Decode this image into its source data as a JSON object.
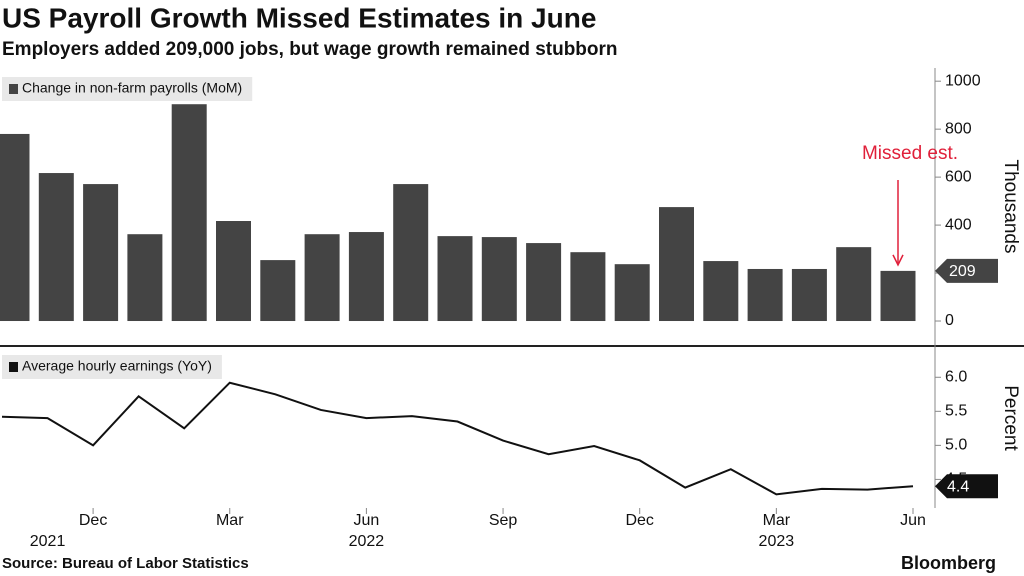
{
  "title": "US Payroll Growth Missed Estimates in June",
  "subtitle": "Employers added 209,000 jobs, but wage growth remained stubborn",
  "source": "Source: Bureau of Labor Statistics",
  "brand": "Bloomberg",
  "chart_data": [
    {
      "type": "bar",
      "categories": [
        null,
        null,
        "Dec",
        null,
        null,
        "Mar",
        null,
        null,
        "Jun",
        null,
        null,
        "Sep",
        null,
        null,
        "Dec",
        null,
        null,
        "Mar",
        null,
        null,
        "Jun"
      ],
      "series": [
        {
          "name": "Change in non-farm payrolls (MoM)",
          "color": "#444444",
          "values": [
            780,
            617,
            571,
            362,
            904,
            417,
            254,
            362,
            371,
            571,
            354,
            350,
            325,
            287,
            237,
            475,
            250,
            217,
            217,
            308,
            209
          ]
        }
      ],
      "ylabel": "Thousands",
      "ylim": [
        -100,
        1055
      ],
      "yticks": [
        0,
        200,
        400,
        600,
        800,
        1000
      ],
      "annotation": "Missed est.",
      "annotation_color": "#e0203a"
    },
    {
      "type": "line",
      "categories": [
        null,
        null,
        "Dec",
        null,
        null,
        "Mar",
        null,
        null,
        "Jun",
        null,
        null,
        "Sep",
        null,
        null,
        "Dec",
        null,
        null,
        "Mar",
        null,
        null,
        "Jun"
      ],
      "years": [
        "2021",
        "2022",
        "2023"
      ],
      "series": [
        {
          "name": "Average hourly earnings (YoY)",
          "color": "#111111",
          "values": [
            5.42,
            5.4,
            5.0,
            5.72,
            5.25,
            5.92,
            5.75,
            5.52,
            5.4,
            5.43,
            5.35,
            5.07,
            4.87,
            4.99,
            4.78,
            4.38,
            4.65,
            4.28,
            4.36,
            4.35,
            4.4
          ]
        }
      ],
      "ylabel": "Percent",
      "ylim": [
        4.08,
        6.43
      ],
      "yticks": [
        4.5,
        {
          "value": 5,
          "label": "5.0"
        },
        5.5,
        {
          "value": 6,
          "label": "6.0"
        }
      ]
    }
  ]
}
